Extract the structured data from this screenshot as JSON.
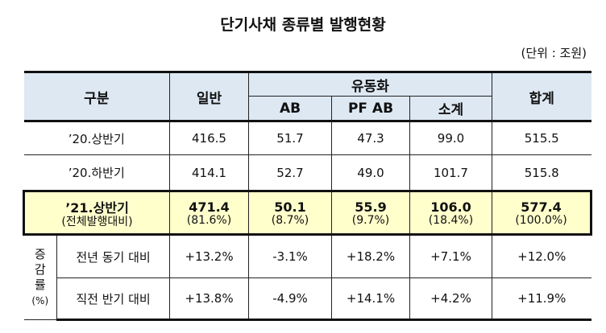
{
  "title": "단기사채 종류별 발행현황",
  "unit": "(단위 : 조원)",
  "header": {
    "category": "구분",
    "general": "일반",
    "liquidation": "유동화",
    "ab": "AB",
    "pfab": "PF AB",
    "subtotal": "소계",
    "total": "합계"
  },
  "rows": [
    {
      "label": "’20.상반기",
      "general": "416.5",
      "ab": "51.7",
      "pfab": "47.3",
      "subtotal": "99.0",
      "total": "515.5"
    },
    {
      "label": "’20.하반기",
      "general": "414.1",
      "ab": "52.7",
      "pfab": "49.0",
      "subtotal": "101.7",
      "total": "515.8"
    }
  ],
  "highlight": {
    "label": "’21.상반기",
    "sublabel": "(전체발행대비)",
    "general": "471.4",
    "general_pct": "(81.6%)",
    "ab": "50.1",
    "ab_pct": "(8.7%)",
    "pfab": "55.9",
    "pfab_pct": "(9.7%)",
    "subtotal": "106.0",
    "subtotal_pct": "(18.4%)",
    "total": "577.4",
    "total_pct": "(100.0%)"
  },
  "change": {
    "group_label_1": "증",
    "group_label_2": "감",
    "group_label_3": "률",
    "group_label_4": "(%)",
    "rows": [
      {
        "label": "전년 동기 대비",
        "general": "+13.2%",
        "ab": "-3.1%",
        "pfab": "+18.2%",
        "subtotal": "+7.1%",
        "total": "+12.0%"
      },
      {
        "label": "직전 반기 대비",
        "general": "+13.8%",
        "ab": "-4.9%",
        "pfab": "+14.1%",
        "subtotal": "+4.2%",
        "total": "+11.9%"
      }
    ]
  }
}
